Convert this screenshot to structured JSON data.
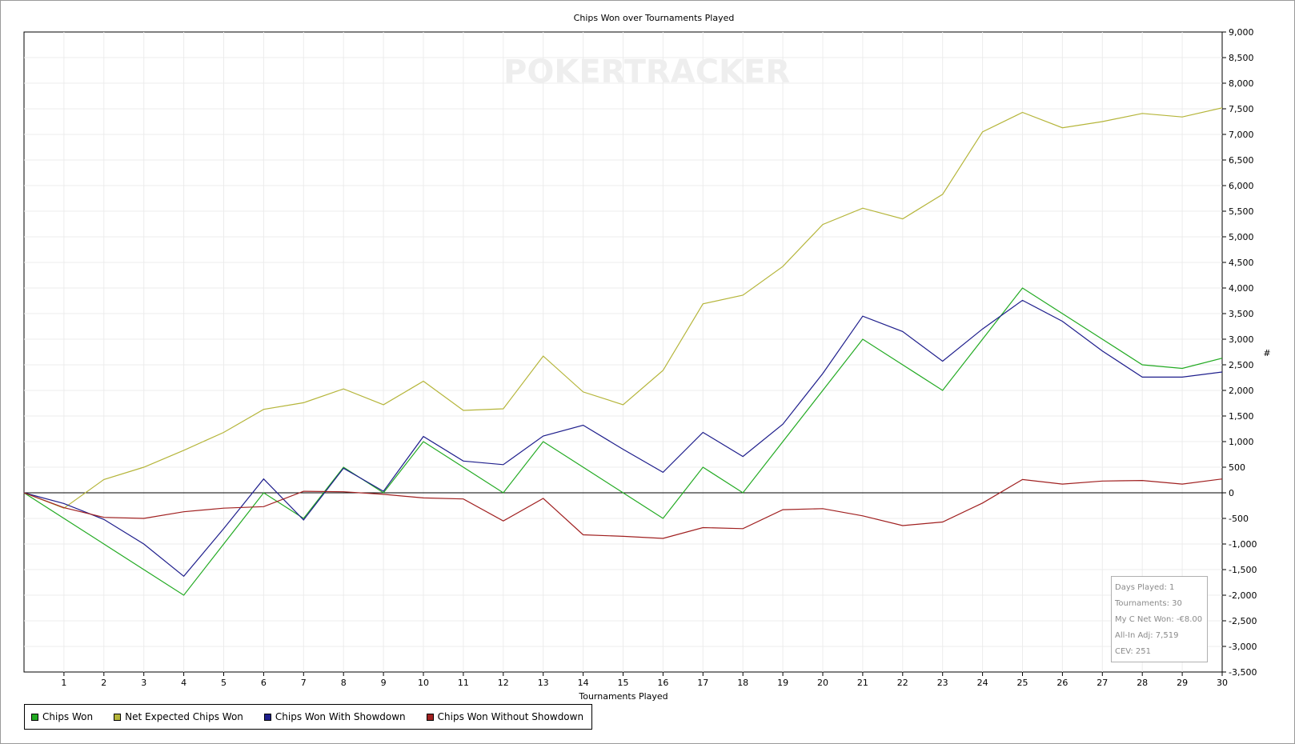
{
  "chart_data": {
    "type": "line",
    "title": "Chips Won over Tournaments Played",
    "xlabel": "Tournaments Played",
    "ylabel": "#",
    "watermark": "POKERTRACKER",
    "xlim": [
      0,
      30
    ],
    "ylim": [
      -3500,
      9000
    ],
    "x": [
      0,
      1,
      2,
      3,
      4,
      5,
      6,
      7,
      8,
      9,
      10,
      11,
      12,
      13,
      14,
      15,
      16,
      17,
      18,
      19,
      20,
      21,
      22,
      23,
      24,
      25,
      26,
      27,
      28,
      29,
      30
    ],
    "x_ticks": [
      "1",
      "2",
      "3",
      "4",
      "5",
      "6",
      "7",
      "8",
      "9",
      "10",
      "11",
      "12",
      "13",
      "14",
      "15",
      "16",
      "17",
      "18",
      "19",
      "20",
      "21",
      "22",
      "23",
      "24",
      "25",
      "26",
      "27",
      "28",
      "29",
      "30"
    ],
    "y_ticks": [
      "9,000",
      "8,500",
      "8,000",
      "7,500",
      "7,000",
      "6,500",
      "6,000",
      "5,500",
      "5,000",
      "4,500",
      "4,000",
      "3,500",
      "3,000",
      "2,500",
      "2,000",
      "1,500",
      "1,000",
      "500",
      "0",
      "-500",
      "-1,000",
      "-1,500",
      "-2,000",
      "-2,500",
      "-3,000",
      "-3,500"
    ],
    "y_tick_values": [
      9000,
      8500,
      8000,
      7500,
      7000,
      6500,
      6000,
      5500,
      5000,
      4500,
      4000,
      3500,
      3000,
      2500,
      2000,
      1500,
      1000,
      500,
      0,
      -500,
      -1000,
      -1500,
      -2000,
      -2500,
      -3000,
      -3500
    ],
    "grid": true,
    "legend_position": "bottom-left",
    "series": [
      {
        "name": "Chips Won",
        "color": "#22aa22",
        "values": [
          0,
          -500,
          -1000,
          -1500,
          -2000,
          -1000,
          0,
          -500,
          500,
          0,
          1000,
          500,
          0,
          1000,
          500,
          0,
          -500,
          500,
          0,
          1000,
          2000,
          3000,
          2500,
          2000,
          3000,
          4000,
          3500,
          3000,
          2500,
          2430,
          2630
        ]
      },
      {
        "name": "Net Expected Chips Won",
        "color": "#b5b53a",
        "values": [
          0,
          -300,
          260,
          500,
          830,
          1180,
          1630,
          1760,
          2030,
          1720,
          2180,
          1610,
          1640,
          2670,
          1970,
          1720,
          2390,
          3690,
          3860,
          4420,
          5240,
          5560,
          5350,
          5830,
          7050,
          7430,
          7130,
          7250,
          7410,
          7340,
          7519
        ]
      },
      {
        "name": "Chips Won With Showdown",
        "color": "#1e1e8c",
        "values": [
          0,
          -210,
          -520,
          -1000,
          -1630,
          -700,
          270,
          -530,
          480,
          30,
          1100,
          620,
          550,
          1110,
          1320,
          850,
          400,
          1180,
          710,
          1340,
          2330,
          3450,
          3150,
          2570,
          3200,
          3760,
          3350,
          2770,
          2260,
          2260,
          2360
        ]
      },
      {
        "name": "Chips Won Without Showdown",
        "color": "#a02020",
        "values": [
          0,
          -290,
          -480,
          -500,
          -370,
          -300,
          -270,
          30,
          20,
          -30,
          -100,
          -120,
          -550,
          -110,
          -820,
          -850,
          -890,
          -680,
          -700,
          -330,
          -310,
          -450,
          -640,
          -570,
          -200,
          260,
          170,
          230,
          240,
          170,
          270
        ]
      }
    ]
  },
  "legend": [
    {
      "label": "Chips Won",
      "color": "#22aa22"
    },
    {
      "label": "Net Expected Chips Won",
      "color": "#b5b53a"
    },
    {
      "label": "Chips Won With Showdown",
      "color": "#1e1e8c"
    },
    {
      "label": "Chips Won Without Showdown",
      "color": "#a02020"
    }
  ],
  "stats": {
    "days_played": "Days Played: 1",
    "tournaments": "Tournaments: 30",
    "net_won": "My C Net Won: -€8.00",
    "all_in_adj": "All-In Adj: 7,519",
    "cev": "CEV: 251"
  }
}
